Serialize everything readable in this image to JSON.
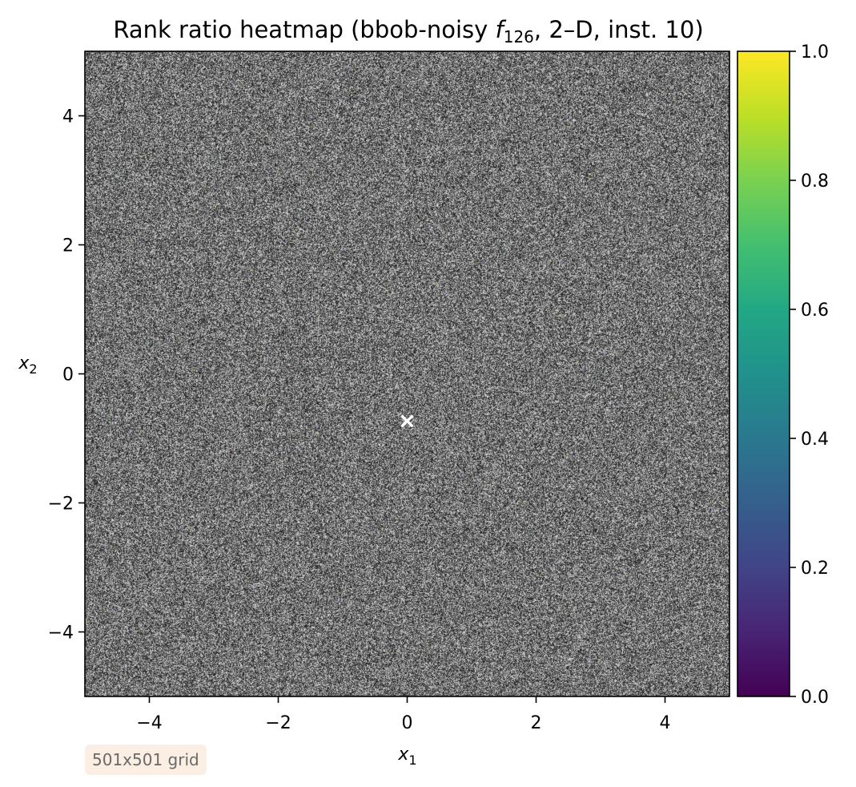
{
  "chart_data": {
    "type": "heatmap",
    "title": {
      "prefix": "Rank ratio heatmap (bbob-noisy ",
      "func_letter": "f",
      "func_subscript": "126",
      "suffix": ", 2–D, inst. 10)"
    },
    "xlabel": {
      "main": "x",
      "sub": "1"
    },
    "ylabel": {
      "main": "x",
      "sub": "2"
    },
    "xlim": [
      -5,
      5
    ],
    "ylim": [
      -5,
      5
    ],
    "xticks": [
      -4,
      -2,
      0,
      2,
      4
    ],
    "yticks": [
      -4,
      -2,
      0,
      2,
      4
    ],
    "tick_labels_x": [
      "−4",
      "−2",
      "0",
      "2",
      "4"
    ],
    "tick_labels_y": [
      "−4",
      "−2",
      "0",
      "2",
      "4"
    ],
    "colorbar": {
      "range": [
        0,
        1
      ],
      "ticks": [
        0,
        0.2,
        0.4,
        0.6,
        0.8,
        1
      ],
      "tick_labels": [
        "0.0",
        "0.2",
        "0.4",
        "0.6",
        "0.8",
        "1.0"
      ],
      "colormap": "viridis"
    },
    "optimum_marker": {
      "x": 0.0,
      "y": -0.72,
      "symbol": "×",
      "color": "#ffffff"
    },
    "grid_size_label": "501x501 grid",
    "field_appearance": "noisy gray speckle (black/white) with sparse colored pixels"
  }
}
